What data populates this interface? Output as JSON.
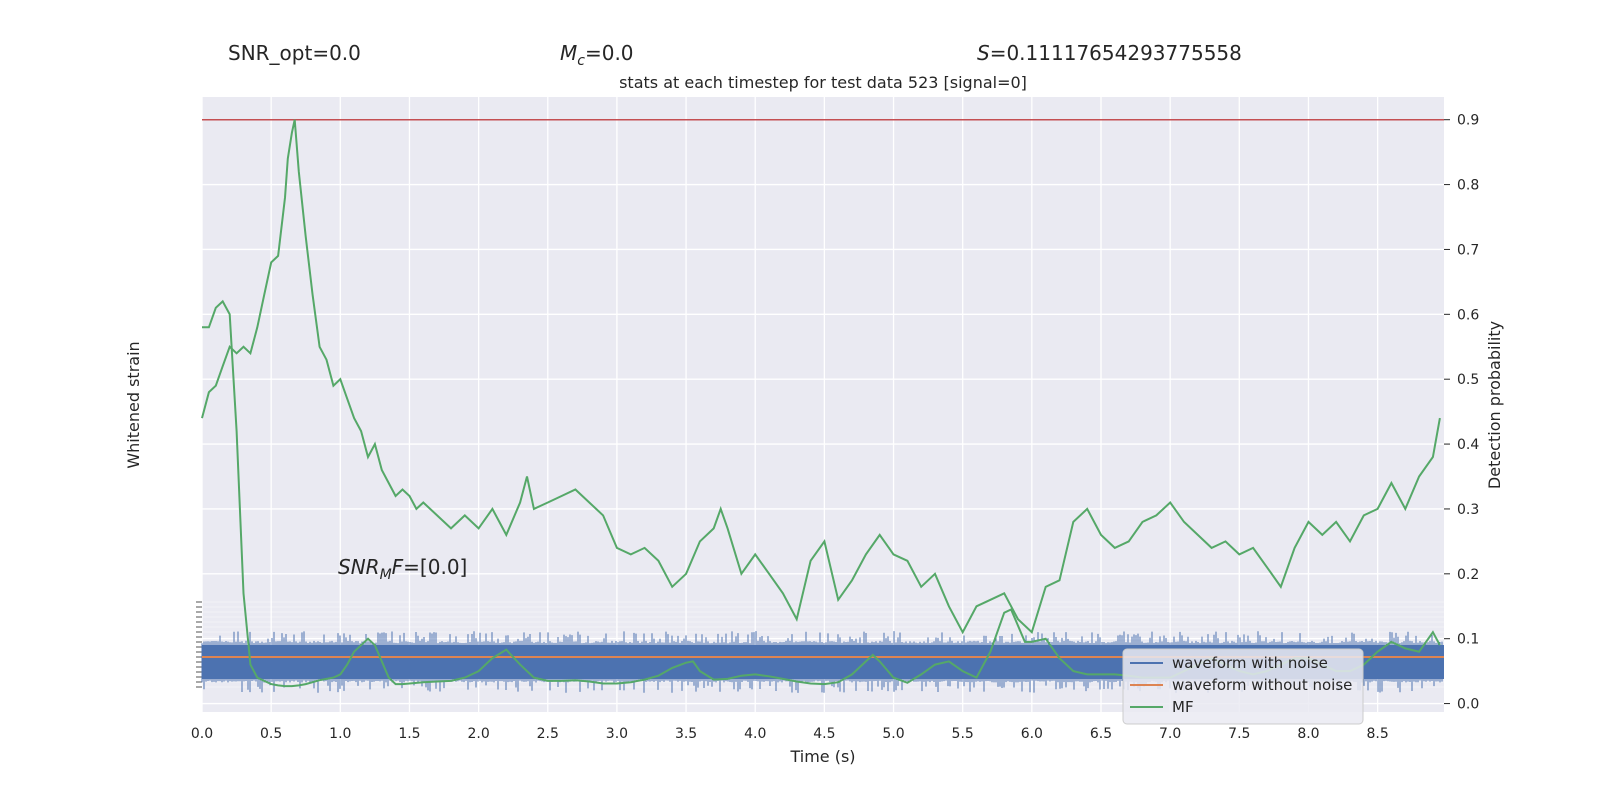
{
  "header": {
    "snr_opt": "SNR_opt=0.0",
    "mc_symbol": "M",
    "mc_sub": "c",
    "mc_value": "=0.0",
    "s_symbol": "S",
    "s_value": "=0.11117654293775558",
    "subtitle": "stats at each timestep for test data 523 [signal=0]",
    "snr_mf_symbol": "SNR",
    "snr_mf_sub": "M",
    "snr_mf_suffix": "F",
    "snr_mf_value": "=[0.0]"
  },
  "colors": {
    "background": "#eaeaf2",
    "grid": "#ffffff",
    "noisy": "#4c72b0",
    "clean": "#dd8452",
    "mf": "#55a868",
    "threshold": "#c44e52"
  },
  "chart_data": {
    "type": "line",
    "title": "stats at each timestep for test data 523 [signal=0]",
    "xlabel": "Time (s)",
    "ylabel_left": "Whitened strain",
    "ylabel_right": "Detection probability",
    "xlim": [
      0.0,
      8.98
    ],
    "ylim_right": [
      -0.013,
      0.935
    ],
    "x_ticks": [
      "0.0",
      "0.5",
      "1.0",
      "1.5",
      "2.0",
      "2.5",
      "3.0",
      "3.5",
      "4.0",
      "4.5",
      "5.0",
      "5.5",
      "6.0",
      "6.5",
      "7.0",
      "7.5",
      "8.0",
      "8.5"
    ],
    "y_ticks_right": [
      "0.0",
      "0.1",
      "0.2",
      "0.3",
      "0.4",
      "0.5",
      "0.6",
      "0.7",
      "0.8",
      "0.9"
    ],
    "threshold": 0.9,
    "grid": true,
    "legend_position": "lower-right",
    "legend": [
      "waveform with noise",
      "waveform without noise",
      "MF"
    ],
    "left_axis_note": "left tick labels overlap densely and are illegible",
    "series": [
      {
        "name": "detection probability",
        "axis": "right",
        "x": [
          0.0,
          0.05,
          0.1,
          0.15,
          0.2,
          0.25,
          0.3,
          0.35,
          0.4,
          0.45,
          0.5,
          0.55,
          0.6,
          0.62,
          0.65,
          0.67,
          0.7,
          0.75,
          0.8,
          0.85,
          0.9,
          0.95,
          1.0,
          1.05,
          1.1,
          1.15,
          1.2,
          1.25,
          1.3,
          1.35,
          1.4,
          1.45,
          1.5,
          1.55,
          1.6,
          1.7,
          1.8,
          1.9,
          2.0,
          2.1,
          2.2,
          2.3,
          2.35,
          2.4,
          2.5,
          2.6,
          2.7,
          2.8,
          2.9,
          3.0,
          3.1,
          3.2,
          3.3,
          3.4,
          3.5,
          3.6,
          3.7,
          3.75,
          3.8,
          3.9,
          4.0,
          4.1,
          4.2,
          4.3,
          4.4,
          4.5,
          4.6,
          4.7,
          4.8,
          4.9,
          5.0,
          5.1,
          5.2,
          5.3,
          5.4,
          5.5,
          5.6,
          5.7,
          5.8,
          5.9,
          6.0,
          6.1,
          6.2,
          6.3,
          6.4,
          6.5,
          6.6,
          6.7,
          6.8,
          6.9,
          7.0,
          7.1,
          7.2,
          7.3,
          7.4,
          7.5,
          7.6,
          7.7,
          7.8,
          7.9,
          8.0,
          8.1,
          8.2,
          8.3,
          8.4,
          8.5,
          8.6,
          8.7,
          8.8,
          8.9,
          8.95
        ],
        "y": [
          0.44,
          0.48,
          0.49,
          0.52,
          0.55,
          0.54,
          0.55,
          0.54,
          0.58,
          0.63,
          0.68,
          0.69,
          0.78,
          0.84,
          0.88,
          0.9,
          0.82,
          0.72,
          0.63,
          0.55,
          0.53,
          0.49,
          0.5,
          0.47,
          0.44,
          0.42,
          0.38,
          0.4,
          0.36,
          0.34,
          0.32,
          0.33,
          0.32,
          0.3,
          0.31,
          0.29,
          0.27,
          0.29,
          0.27,
          0.3,
          0.26,
          0.31,
          0.35,
          0.3,
          0.31,
          0.32,
          0.33,
          0.31,
          0.29,
          0.24,
          0.23,
          0.24,
          0.22,
          0.18,
          0.2,
          0.25,
          0.27,
          0.3,
          0.27,
          0.2,
          0.23,
          0.2,
          0.17,
          0.13,
          0.22,
          0.25,
          0.16,
          0.19,
          0.23,
          0.26,
          0.23,
          0.22,
          0.18,
          0.2,
          0.15,
          0.11,
          0.15,
          0.16,
          0.17,
          0.13,
          0.11,
          0.18,
          0.19,
          0.28,
          0.3,
          0.26,
          0.24,
          0.25,
          0.28,
          0.29,
          0.31,
          0.28,
          0.26,
          0.24,
          0.25,
          0.23,
          0.24,
          0.21,
          0.18,
          0.24,
          0.28,
          0.26,
          0.28,
          0.25,
          0.29,
          0.3,
          0.34,
          0.3,
          0.35,
          0.38,
          0.44
        ]
      },
      {
        "name": "MF",
        "axis": "right",
        "x": [
          0.0,
          0.05,
          0.1,
          0.15,
          0.2,
          0.25,
          0.3,
          0.35,
          0.4,
          0.45,
          0.5,
          0.55,
          0.6,
          0.65,
          0.7,
          0.75,
          0.8,
          0.85,
          0.9,
          0.95,
          1.0,
          1.05,
          1.1,
          1.15,
          1.2,
          1.25,
          1.3,
          1.35,
          1.4,
          1.45,
          1.5,
          1.6,
          1.7,
          1.8,
          1.9,
          2.0,
          2.1,
          2.2,
          2.3,
          2.4,
          2.5,
          2.6,
          2.7,
          2.8,
          2.9,
          3.0,
          3.1,
          3.2,
          3.3,
          3.4,
          3.5,
          3.55,
          3.6,
          3.7,
          3.8,
          3.9,
          4.0,
          4.1,
          4.2,
          4.3,
          4.4,
          4.5,
          4.6,
          4.7,
          4.8,
          4.85,
          4.9,
          5.0,
          5.1,
          5.2,
          5.3,
          5.4,
          5.5,
          5.6,
          5.7,
          5.8,
          5.85,
          5.9,
          5.95,
          6.0,
          6.1,
          6.2,
          6.3,
          6.4,
          6.5,
          6.6,
          6.7,
          6.8,
          6.9,
          7.0,
          7.05,
          7.1,
          7.2,
          7.3,
          7.4,
          7.5,
          7.6,
          7.7,
          7.8,
          7.9,
          8.0,
          8.1,
          8.2,
          8.3,
          8.4,
          8.5,
          8.6,
          8.7,
          8.8,
          8.9,
          8.95
        ],
        "y": [
          0.58,
          0.58,
          0.61,
          0.62,
          0.6,
          0.42,
          0.17,
          0.06,
          0.04,
          0.035,
          0.03,
          0.028,
          0.027,
          0.027,
          0.028,
          0.03,
          0.033,
          0.036,
          0.038,
          0.04,
          0.045,
          0.06,
          0.08,
          0.09,
          0.1,
          0.09,
          0.065,
          0.04,
          0.03,
          0.03,
          0.031,
          0.033,
          0.034,
          0.035,
          0.04,
          0.05,
          0.07,
          0.083,
          0.06,
          0.04,
          0.035,
          0.035,
          0.036,
          0.034,
          0.031,
          0.031,
          0.033,
          0.037,
          0.043,
          0.055,
          0.063,
          0.065,
          0.05,
          0.037,
          0.038,
          0.043,
          0.045,
          0.042,
          0.038,
          0.034,
          0.031,
          0.03,
          0.033,
          0.045,
          0.065,
          0.075,
          0.065,
          0.04,
          0.032,
          0.045,
          0.06,
          0.065,
          0.05,
          0.04,
          0.08,
          0.14,
          0.145,
          0.12,
          0.095,
          0.095,
          0.1,
          0.07,
          0.05,
          0.045,
          0.045,
          0.045,
          0.043,
          0.04,
          0.04,
          0.04,
          0.045,
          0.05,
          0.06,
          0.07,
          0.06,
          0.05,
          0.045,
          0.05,
          0.06,
          0.07,
          0.07,
          0.06,
          0.05,
          0.05,
          0.06,
          0.08,
          0.095,
          0.085,
          0.08,
          0.11,
          0.09
        ]
      },
      {
        "name": "waveform with noise",
        "axis": "left",
        "x": [
          0.0,
          8.98
        ],
        "y": [
          0.0,
          0.0
        ],
        "note": "dense noise band centered on the strain baseline, amplitude about ±1 strain unit"
      },
      {
        "name": "waveform without noise",
        "axis": "left",
        "x": [
          0.0,
          8.98
        ],
        "y": [
          0.0,
          0.0
        ]
      }
    ]
  }
}
